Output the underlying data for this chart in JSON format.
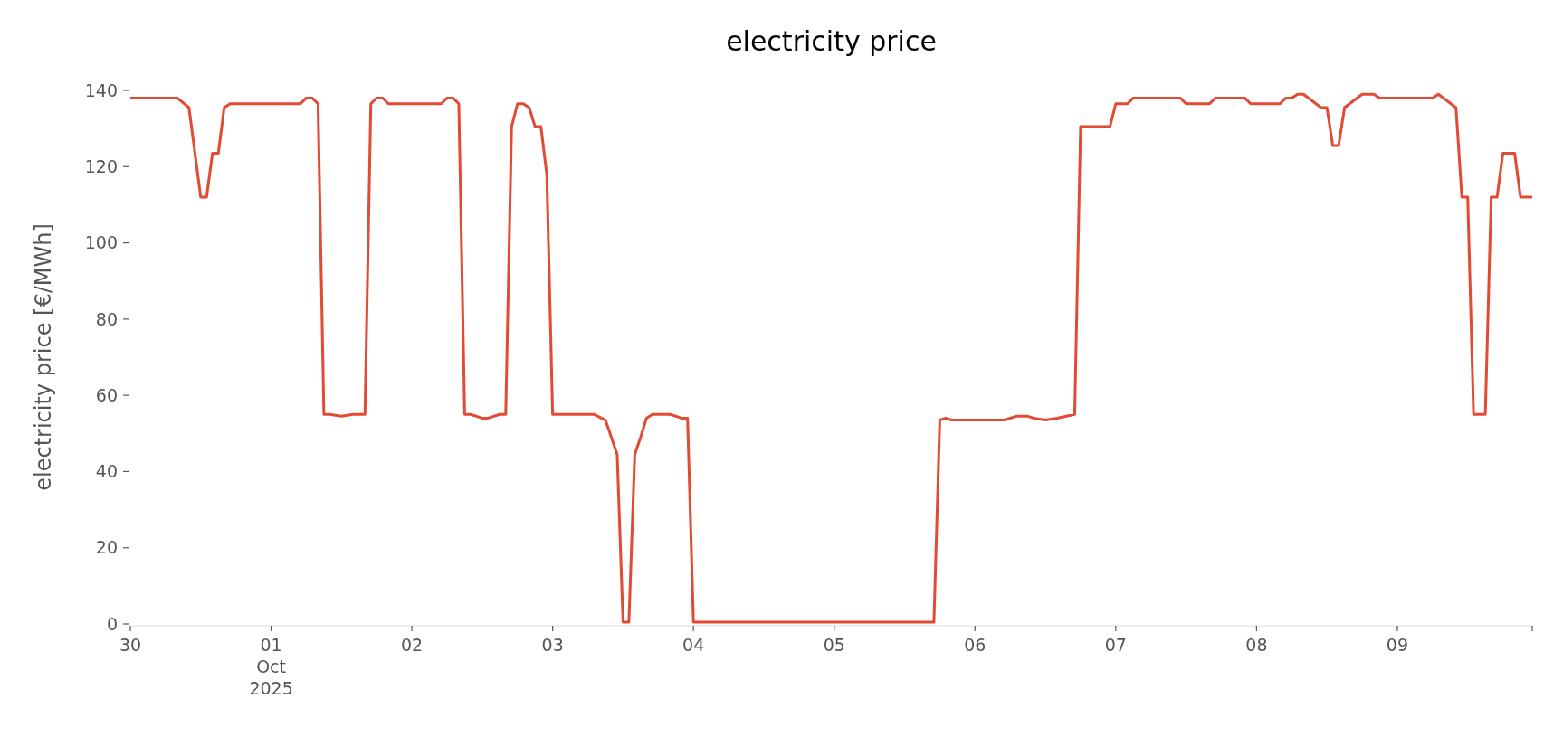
{
  "chart_data": {
    "type": "line",
    "title": "electricity price",
    "ylabel": "electricity price [€/MWh]",
    "xlim": [
      "2025-09-30T00:00",
      "2025-10-09T23:00"
    ],
    "xticks": [
      {
        "value": "2025-09-30",
        "label": "30"
      },
      {
        "value": "2025-10-01",
        "label": "01\nOct\n2025"
      },
      {
        "value": "2025-10-02",
        "label": "02"
      },
      {
        "value": "2025-10-03",
        "label": "03"
      },
      {
        "value": "2025-10-04",
        "label": "04"
      },
      {
        "value": "2025-10-05",
        "label": "05"
      },
      {
        "value": "2025-10-06",
        "label": "06"
      },
      {
        "value": "2025-10-07",
        "label": "07"
      },
      {
        "value": "2025-10-08",
        "label": "08"
      },
      {
        "value": "2025-10-09",
        "label": "09"
      },
      {
        "value": "2025-10-09T23:00",
        "label": null
      }
    ],
    "ylim": [
      0,
      140
    ],
    "yticks": [
      0,
      20,
      40,
      60,
      80,
      100,
      120,
      140
    ],
    "grid": false,
    "marker": "none",
    "line_style": "solid",
    "series": [
      {
        "color": "#e24a33",
        "x": [
          "2025-09-30T00:00",
          "2025-09-30T08:00",
          "2025-09-30T10:00",
          "2025-09-30T12:00",
          "2025-09-30T13:00",
          "2025-09-30T14:00",
          "2025-09-30T15:00",
          "2025-09-30T16:00",
          "2025-09-30T17:00",
          "2025-10-01T05:00",
          "2025-10-01T06:00",
          "2025-10-01T07:00",
          "2025-10-01T08:00",
          "2025-10-01T09:00",
          "2025-10-01T10:00",
          "2025-10-01T12:00",
          "2025-10-01T14:00",
          "2025-10-01T16:00",
          "2025-10-01T17:00",
          "2025-10-01T18:00",
          "2025-10-01T19:00",
          "2025-10-01T20:00",
          "2025-10-02T05:00",
          "2025-10-02T06:00",
          "2025-10-02T07:00",
          "2025-10-02T08:00",
          "2025-10-02T09:00",
          "2025-10-02T10:00",
          "2025-10-02T12:00",
          "2025-10-02T13:00",
          "2025-10-02T15:00",
          "2025-10-02T16:00",
          "2025-10-02T17:00",
          "2025-10-02T18:00",
          "2025-10-02T19:00",
          "2025-10-02T20:00",
          "2025-10-02T21:00",
          "2025-10-02T22:00",
          "2025-10-02T23:00",
          "2025-10-03T00:00",
          "2025-10-03T07:00",
          "2025-10-03T09:00",
          "2025-10-03T10:00",
          "2025-10-03T11:00",
          "2025-10-03T12:00",
          "2025-10-03T13:00",
          "2025-10-03T14:00",
          "2025-10-03T15:00",
          "2025-10-03T16:00",
          "2025-10-03T17:00",
          "2025-10-03T20:00",
          "2025-10-03T22:00",
          "2025-10-03T23:00",
          "2025-10-04T00:00",
          "2025-10-05T00:00",
          "2025-10-05T17:00",
          "2025-10-05T18:00",
          "2025-10-05T19:00",
          "2025-10-05T20:00",
          "2025-10-06T05:00",
          "2025-10-06T07:00",
          "2025-10-06T09:00",
          "2025-10-06T10:00",
          "2025-10-06T12:00",
          "2025-10-06T14:00",
          "2025-10-06T17:00",
          "2025-10-06T18:00",
          "2025-10-06T23:00",
          "2025-10-07T00:00",
          "2025-10-07T02:00",
          "2025-10-07T03:00",
          "2025-10-07T11:00",
          "2025-10-07T12:00",
          "2025-10-07T16:00",
          "2025-10-07T17:00",
          "2025-10-07T22:00",
          "2025-10-07T23:00",
          "2025-10-08T04:00",
          "2025-10-08T05:00",
          "2025-10-08T06:00",
          "2025-10-08T07:00",
          "2025-10-08T08:00",
          "2025-10-08T11:00",
          "2025-10-08T12:00",
          "2025-10-08T13:00",
          "2025-10-08T14:00",
          "2025-10-08T15:00",
          "2025-10-08T18:00",
          "2025-10-08T20:00",
          "2025-10-08T21:00",
          "2025-10-09T06:00",
          "2025-10-09T07:00",
          "2025-10-09T10:00",
          "2025-10-09T11:00",
          "2025-10-09T12:00",
          "2025-10-09T13:00",
          "2025-10-09T15:00",
          "2025-10-09T16:00",
          "2025-10-09T17:00",
          "2025-10-09T18:00",
          "2025-10-09T20:00",
          "2025-10-09T21:00",
          "2025-10-09T23:00"
        ],
        "values": [
          138,
          138,
          135.5,
          112,
          112,
          123.5,
          123.5,
          135.5,
          136.5,
          136.5,
          138,
          138,
          136.5,
          55,
          55,
          54.5,
          55,
          55,
          136.5,
          138,
          138,
          136.5,
          136.5,
          138,
          138,
          136.5,
          55,
          55,
          54,
          54,
          55,
          55,
          130.5,
          136.5,
          136.5,
          135.5,
          130.5,
          130.5,
          118,
          55,
          55,
          53.5,
          49,
          44.5,
          0.5,
          0.5,
          44.5,
          49,
          54,
          55,
          55,
          54,
          54,
          0.5,
          0.5,
          0.5,
          53.5,
          54,
          53.5,
          53.5,
          54.5,
          54.5,
          54,
          53.5,
          54,
          55,
          130.5,
          130.5,
          136.5,
          136.5,
          138,
          138,
          136.5,
          136.5,
          138,
          138,
          136.5,
          136.5,
          138,
          138,
          139,
          139,
          135.5,
          135.5,
          125.5,
          125.5,
          135.5,
          139,
          139,
          138,
          138,
          139,
          135.5,
          112,
          112,
          55,
          55,
          112,
          112,
          123.5,
          123.5,
          112,
          112
        ]
      }
    ]
  }
}
